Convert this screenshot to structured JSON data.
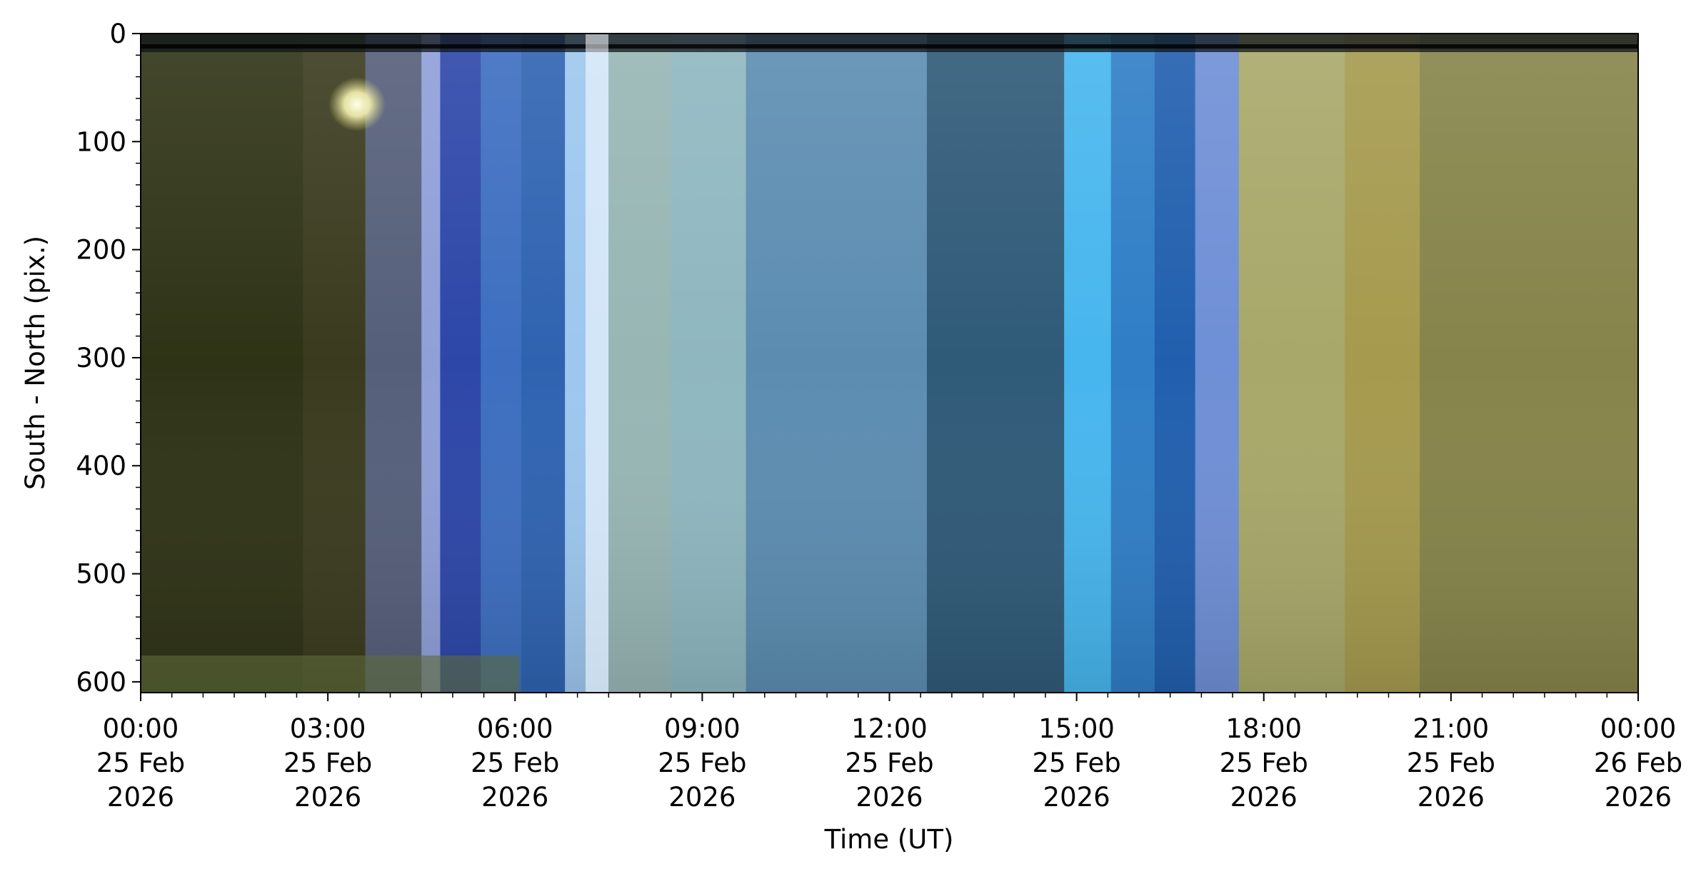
{
  "chart_data": {
    "type": "heatmap",
    "title": "",
    "xlabel": "Time (UT)",
    "ylabel": "South - North (pix.)",
    "ylim": [
      610,
      0
    ],
    "y_ticks": [
      0,
      100,
      200,
      300,
      400,
      500,
      600
    ],
    "xlim_hours": [
      0,
      24
    ],
    "x_ticks": [
      {
        "hour": 0,
        "time": "00:00",
        "day": "25 Feb",
        "year": "2026"
      },
      {
        "hour": 3,
        "time": "03:00",
        "day": "25 Feb",
        "year": "2026"
      },
      {
        "hour": 6,
        "time": "06:00",
        "day": "25 Feb",
        "year": "2026"
      },
      {
        "hour": 9,
        "time": "09:00",
        "day": "25 Feb",
        "year": "2026"
      },
      {
        "hour": 12,
        "time": "12:00",
        "day": "25 Feb",
        "year": "2026"
      },
      {
        "hour": 15,
        "time": "15:00",
        "day": "25 Feb",
        "year": "2026"
      },
      {
        "hour": 18,
        "time": "18:00",
        "day": "25 Feb",
        "year": "2026"
      },
      {
        "hour": 21,
        "time": "21:00",
        "day": "25 Feb",
        "year": "2026"
      },
      {
        "hour": 24,
        "time": "00:00",
        "day": "26 Feb",
        "year": "2026"
      }
    ],
    "color_bands": [
      {
        "start": 0.0,
        "end": 2.6,
        "color": "#2f3316"
      },
      {
        "start": 2.6,
        "end": 3.6,
        "color": "#3a3b1e"
      },
      {
        "start": 3.6,
        "end": 4.5,
        "color": "#565f7a"
      },
      {
        "start": 4.5,
        "end": 4.8,
        "color": "#8f9fd8"
      },
      {
        "start": 4.8,
        "end": 5.45,
        "color": "#2d47a8"
      },
      {
        "start": 5.45,
        "end": 6.1,
        "color": "#3d6ec0"
      },
      {
        "start": 6.1,
        "end": 6.8,
        "color": "#2f63b1"
      },
      {
        "start": 6.8,
        "end": 7.5,
        "color": "#9dc7ef"
      },
      {
        "start": 7.5,
        "end": 8.5,
        "color": "#97b6b4"
      },
      {
        "start": 8.5,
        "end": 9.7,
        "color": "#8fb7c0"
      },
      {
        "start": 9.7,
        "end": 12.6,
        "color": "#5c8db1"
      },
      {
        "start": 12.6,
        "end": 14.8,
        "color": "#2f5a78"
      },
      {
        "start": 14.8,
        "end": 15.55,
        "color": "#47b6ee"
      },
      {
        "start": 15.55,
        "end": 16.25,
        "color": "#2f7ec6"
      },
      {
        "start": 16.25,
        "end": 16.9,
        "color": "#215fae"
      },
      {
        "start": 16.9,
        "end": 17.6,
        "color": "#6f8fd6"
      },
      {
        "start": 17.6,
        "end": 19.3,
        "color": "#a8a86a"
      },
      {
        "start": 19.3,
        "end": 20.5,
        "color": "#a69a4e"
      },
      {
        "start": 20.5,
        "end": 24.0,
        "color": "#86844a"
      }
    ]
  }
}
